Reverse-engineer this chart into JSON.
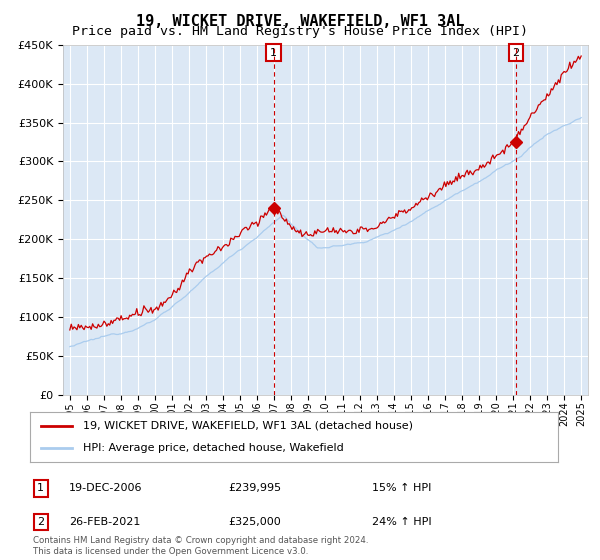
{
  "title": "19, WICKET DRIVE, WAKEFIELD, WF1 3AL",
  "subtitle": "Price paid vs. HM Land Registry's House Price Index (HPI)",
  "ylim": [
    0,
    450000
  ],
  "yticks": [
    0,
    50000,
    100000,
    150000,
    200000,
    250000,
    300000,
    350000,
    400000,
    450000
  ],
  "ytick_labels": [
    "£0",
    "£50K",
    "£100K",
    "£150K",
    "£200K",
    "£250K",
    "£300K",
    "£350K",
    "£400K",
    "£450K"
  ],
  "background_color": "#dce8f5",
  "grid_color": "#ffffff",
  "red_color": "#cc0000",
  "blue_color": "#aaccee",
  "marker1_x": 2006.97,
  "marker1_value": 239995,
  "marker1_label": "1",
  "marker1_date": "19-DEC-2006",
  "marker1_price": "£239,995",
  "marker1_pct": "15% ↑ HPI",
  "marker2_x": 2021.15,
  "marker2_value": 325000,
  "marker2_label": "2",
  "marker2_date": "26-FEB-2021",
  "marker2_price": "£325,000",
  "marker2_pct": "24% ↑ HPI",
  "legend_red": "19, WICKET DRIVE, WAKEFIELD, WF1 3AL (detached house)",
  "legend_blue": "HPI: Average price, detached house, Wakefield",
  "footnote": "Contains HM Land Registry data © Crown copyright and database right 2024.\nThis data is licensed under the Open Government Licence v3.0.",
  "title_fontsize": 11,
  "subtitle_fontsize": 9.5
}
